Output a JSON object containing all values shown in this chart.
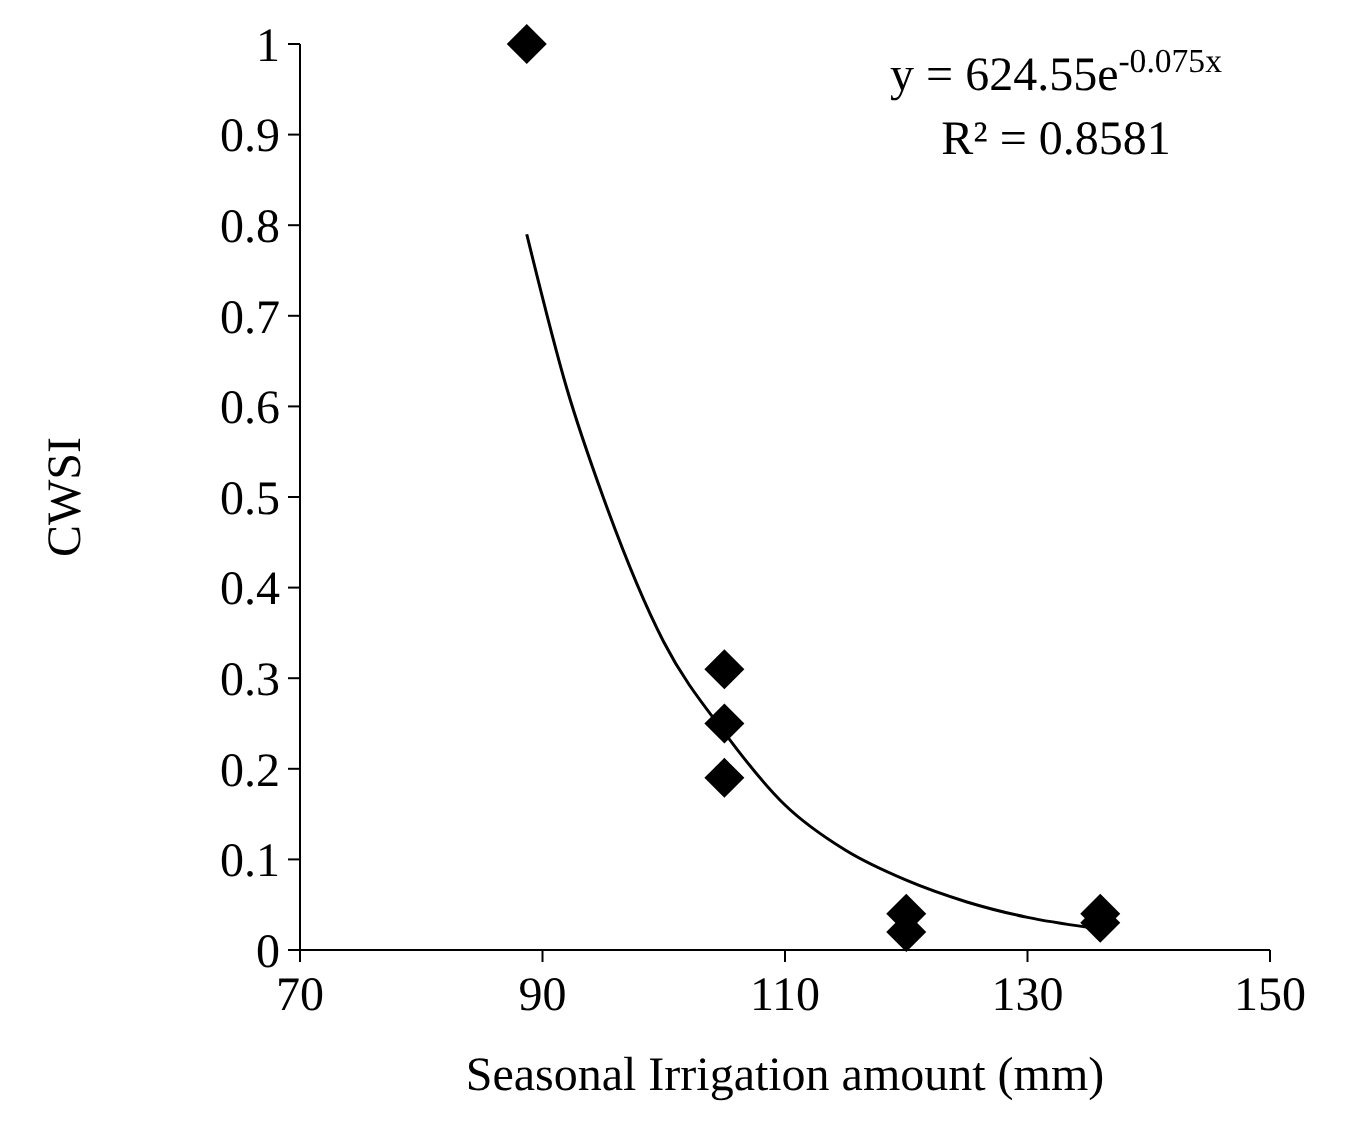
{
  "chart_data": {
    "type": "scatter",
    "xlabel": "Seasonal Irrigation amount (mm)",
    "ylabel": "CWSI",
    "xlim": [
      70,
      150
    ],
    "xticks": [
      70,
      90,
      110,
      130,
      150
    ],
    "ylim": [
      0,
      1
    ],
    "yticks": [
      0,
      0.1,
      0.2,
      0.3,
      0.4,
      0.5,
      0.6,
      0.7,
      0.8,
      0.9,
      1
    ],
    "grid": false,
    "marker": "diamond",
    "annotations": [
      "y = 624.55e$^{-0.075x}$",
      "R² = 0.8581"
    ],
    "series": [
      {
        "color": "#000000",
        "x": [
          88.7,
          105,
          105,
          105,
          120,
          120,
          136,
          136
        ],
        "values": [
          1,
          0.31,
          0.25,
          0.19,
          0.04,
          0.02,
          0.04,
          0.03
        ]
      },
      {
        "type": "line",
        "color": "#000000",
        "line_style": "solid",
        "marker": "none",
        "x": [
          88.7,
          92,
          95,
          100,
          105,
          110,
          115,
          120,
          125,
          130,
          135
        ],
        "values": [
          0.79,
          0.62,
          0.5,
          0.34,
          0.24,
          0.16,
          0.11,
          0.077,
          0.053,
          0.036,
          0.025
        ]
      }
    ]
  }
}
